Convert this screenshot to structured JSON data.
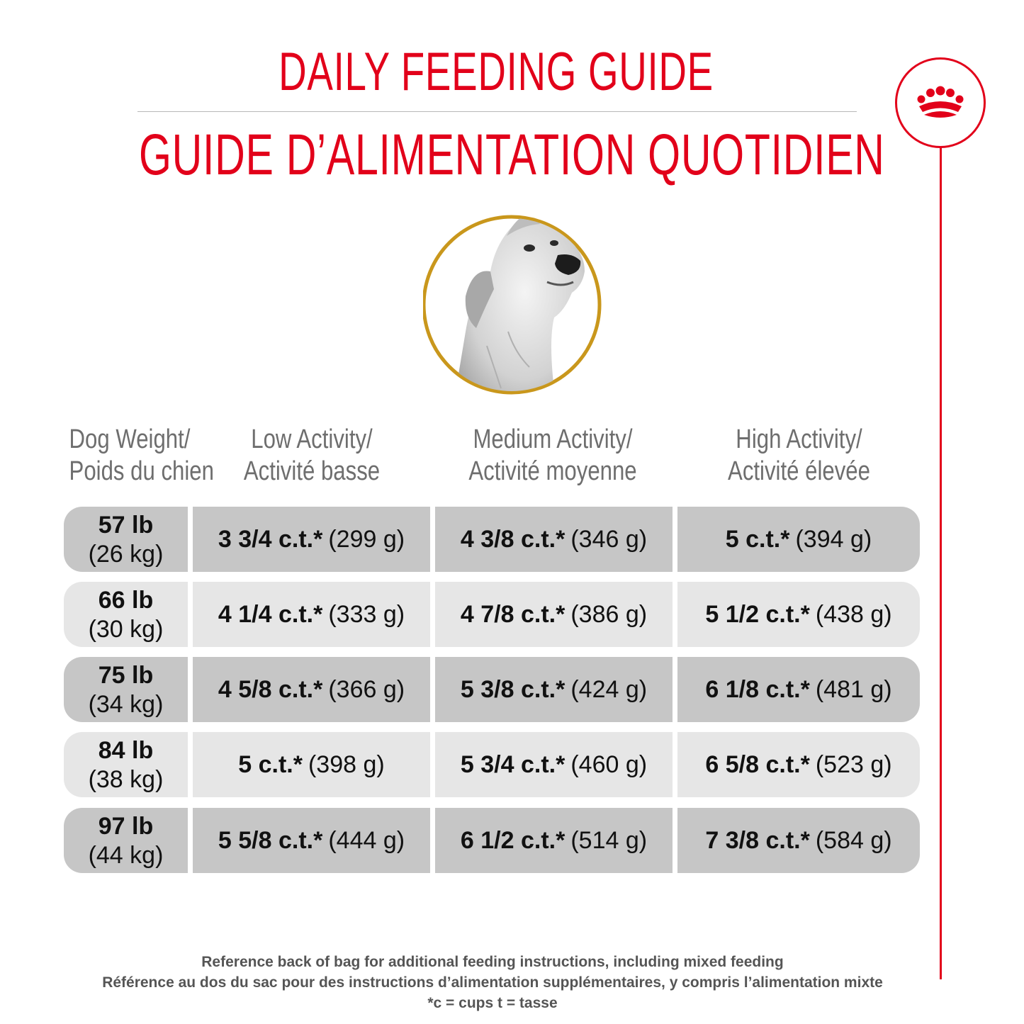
{
  "title_en": "DAILY FEEDING GUIDE",
  "title_fr": "GUIDE D’ALIMENTATION QUOTIDIEN",
  "headers": [
    {
      "line1": "Dog Weight/",
      "line2": "Poids du chien"
    },
    {
      "line1": "Low Activity/",
      "line2": "Activité basse"
    },
    {
      "line1": "Medium Activity/",
      "line2": "Activité moyenne"
    },
    {
      "line1": "High Activity/",
      "line2": "Activité élevée"
    }
  ],
  "rows": [
    {
      "lb": "57 lb",
      "kg": "(26 kg)",
      "low_ct": "3 3/4 c.t.*",
      "low_g": "(299 g)",
      "med_ct": "4 3/8 c.t.*",
      "med_g": "(346 g)",
      "high_ct": "5 c.t.*",
      "high_g": "(394 g)"
    },
    {
      "lb": "66 lb",
      "kg": "(30 kg)",
      "low_ct": "4 1/4 c.t.*",
      "low_g": "(333 g)",
      "med_ct": "4 7/8 c.t.*",
      "med_g": "(386 g)",
      "high_ct": "5 1/2 c.t.*",
      "high_g": "(438 g)"
    },
    {
      "lb": "75 lb",
      "kg": "(34 kg)",
      "low_ct": "4 5/8 c.t.*",
      "low_g": "(366 g)",
      "med_ct": "5 3/8 c.t.*",
      "med_g": "(424 g)",
      "high_ct": "6 1/8 c.t.*",
      "high_g": "(481 g)"
    },
    {
      "lb": "84 lb",
      "kg": "(38 kg)",
      "low_ct": "5 c.t.*",
      "low_g": "(398 g)",
      "med_ct": "5 3/4 c.t.*",
      "med_g": "(460 g)",
      "high_ct": "6 5/8 c.t.*",
      "high_g": "(523 g)"
    },
    {
      "lb": "97 lb",
      "kg": "(44 kg)",
      "low_ct": "5 5/8 c.t.*",
      "low_g": "(444 g)",
      "med_ct": "6 1/2 c.t.*",
      "med_g": "(514 g)",
      "high_ct": "7 3/8 c.t.*",
      "high_g": "(584 g)"
    }
  ],
  "footnotes": {
    "line1": "Reference back of bag for additional feeding instructions, including mixed feeding",
    "line2": "Référence au dos du sac pour des instructions d’alimentation supplémentaires, y compris l’alimentation mixte",
    "line3": "*c = cups t = tasse"
  },
  "colors": {
    "brand_red": "#e2001a",
    "gold_ring": "#c9971c",
    "row_dark": "#c6c6c6",
    "row_light": "#e6e6e6"
  },
  "icons": [
    "crown-logo-icon",
    "dog-portrait"
  ]
}
